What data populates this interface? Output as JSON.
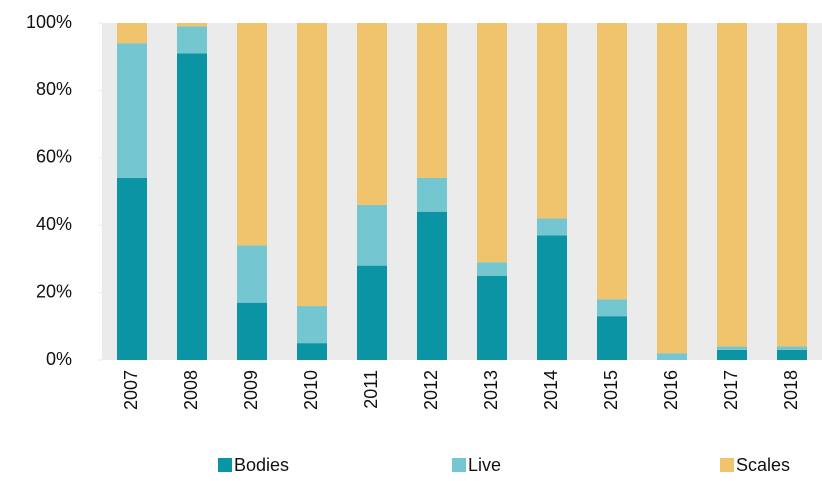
{
  "chart_data": {
    "type": "stacked_bar",
    "categories": [
      "2007",
      "2008",
      "2009",
      "2010",
      "2011",
      "2012",
      "2013",
      "2014",
      "2015",
      "2016",
      "2017",
      "2018"
    ],
    "series": [
      {
        "name": "Bodies",
        "color": "#0a94a4",
        "values": [
          54,
          91,
          17,
          5,
          28,
          44,
          25,
          37,
          13,
          0,
          3,
          3
        ]
      },
      {
        "name": "Live",
        "color": "#74c6d0",
        "values": [
          40,
          8,
          17,
          11,
          18,
          10,
          4,
          5,
          5,
          2,
          1,
          1
        ]
      },
      {
        "name": "Scales",
        "color": "#f0c46c",
        "values": [
          6,
          1,
          66,
          84,
          54,
          46,
          71,
          58,
          82,
          98,
          96,
          96
        ]
      }
    ],
    "ylim": [
      0,
      100
    ],
    "yticks": [
      {
        "value": 0,
        "label": "0%"
      },
      {
        "value": 20,
        "label": "20%"
      },
      {
        "value": 40,
        "label": "40%"
      },
      {
        "value": 60,
        "label": "60%"
      },
      {
        "value": 80,
        "label": "80%"
      },
      {
        "value": 100,
        "label": "100%"
      }
    ],
    "legend": "bottom"
  }
}
